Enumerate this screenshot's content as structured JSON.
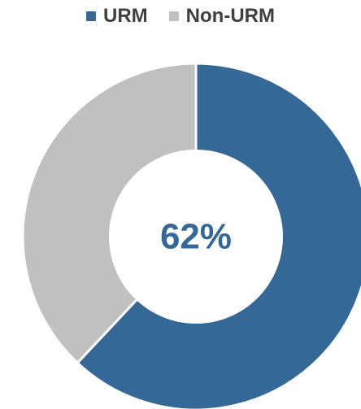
{
  "chart_data": {
    "type": "pie",
    "variant": "donut",
    "categories": [
      "URM",
      "Non-URM"
    ],
    "values": [
      62,
      38
    ],
    "colors": [
      "#346896",
      "#c0c0c0"
    ],
    "center_label": "62%",
    "legend_position": "top"
  }
}
